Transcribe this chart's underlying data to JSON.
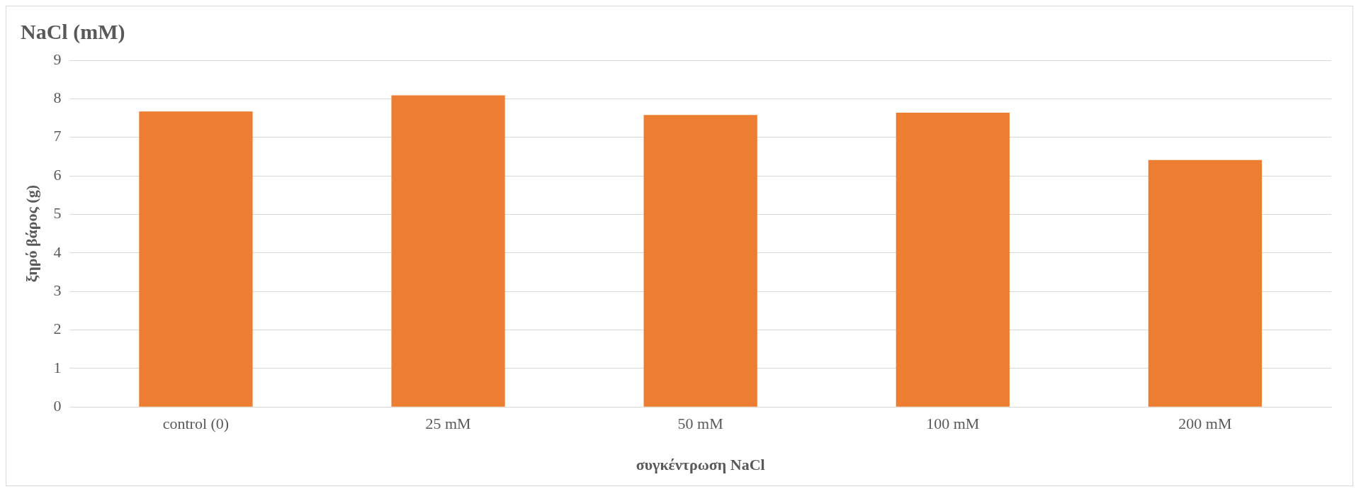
{
  "chart_data": {
    "type": "bar",
    "title": "NaCl (mM)",
    "xlabel": "συγκέντρωση NaCl",
    "ylabel": "ξηρό βάρος (g)",
    "categories": [
      "control (0)",
      "25 mM",
      "50 mM",
      "100 mM",
      "200 mM"
    ],
    "values": [
      7.67,
      8.09,
      7.58,
      7.64,
      6.41
    ],
    "color": "#ed7d31",
    "ylim": [
      0,
      9
    ],
    "yticks": [
      0,
      1,
      2,
      3,
      4,
      5,
      6,
      7,
      8,
      9
    ],
    "grid": "y",
    "legend": false
  }
}
